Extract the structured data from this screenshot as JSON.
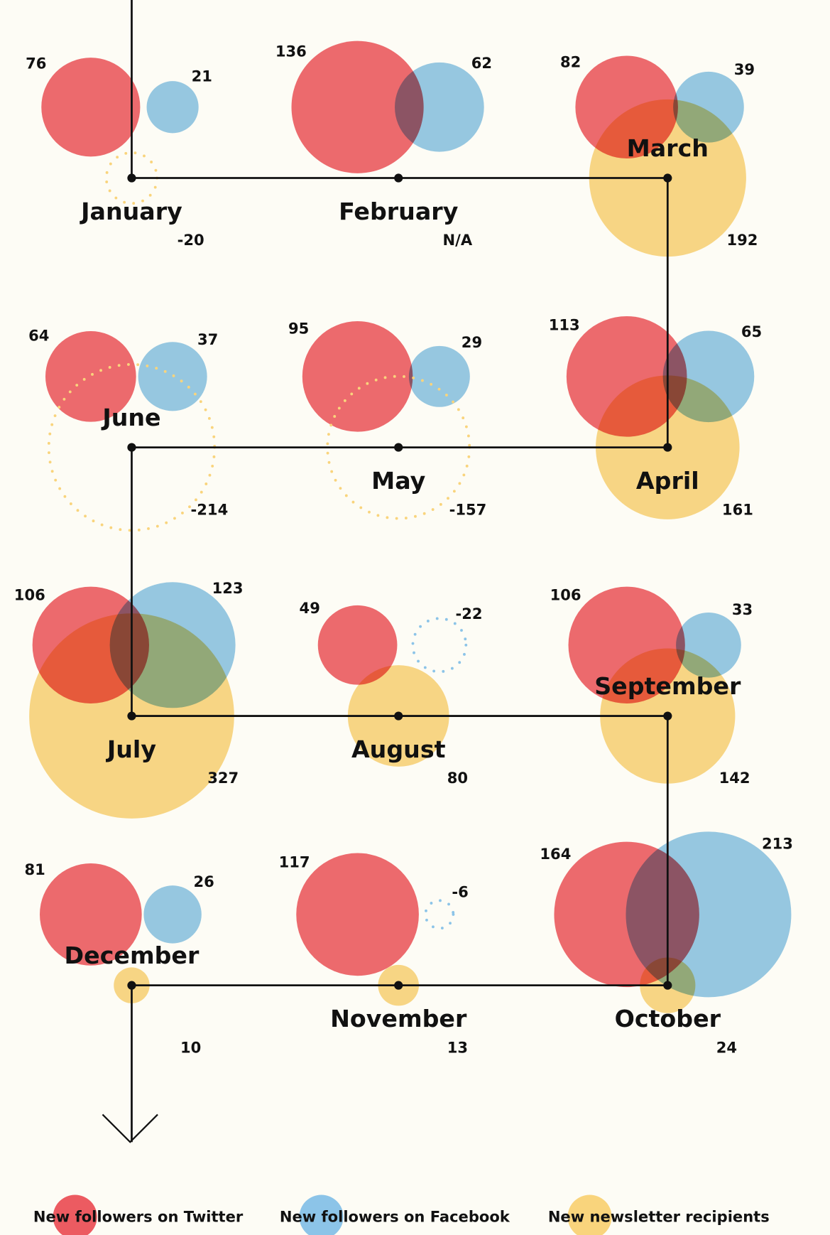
{
  "chart_data": {
    "type": "bubble",
    "categories": [
      "January",
      "February",
      "March",
      "April",
      "May",
      "June",
      "July",
      "August",
      "September",
      "October",
      "November",
      "December"
    ],
    "series": [
      {
        "name": "New followers on Twitter",
        "color": "#ec5b61",
        "values": [
          76,
          136,
          82,
          113,
          95,
          64,
          106,
          49,
          106,
          164,
          117,
          81
        ]
      },
      {
        "name": "New followers on Facebook",
        "color": "#8cc4e8",
        "values": [
          21,
          62,
          39,
          65,
          29,
          37,
          123,
          -22,
          33,
          213,
          -6,
          26
        ]
      },
      {
        "name": "New newsletter recipients",
        "color": "#f9d47c",
        "values": [
          -20,
          null,
          192,
          161,
          -157,
          -214,
          327,
          80,
          142,
          24,
          13,
          10
        ],
        "value_labels": [
          "-20",
          "N/A",
          "192",
          "161",
          "-157",
          "-214",
          "327",
          "80",
          "142",
          "24",
          "13",
          "10"
        ]
      }
    ]
  }
}
